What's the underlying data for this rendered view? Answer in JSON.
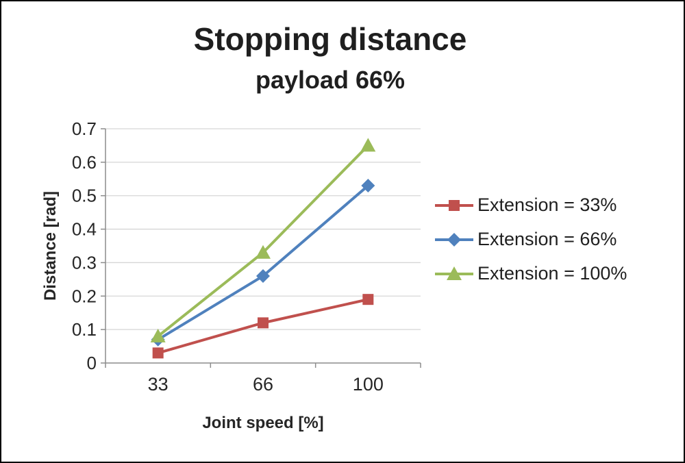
{
  "chart_data": {
    "type": "line",
    "title": "Stopping distance",
    "subtitle": "payload 66%",
    "xlabel": "Joint speed [%]",
    "ylabel": "Distance [rad]",
    "categories": [
      "33",
      "66",
      "100"
    ],
    "ylim": [
      0,
      0.7
    ],
    "ytick_step": 0.1,
    "grid": true,
    "legend_position": "right",
    "series": [
      {
        "name": "Extension = 33%",
        "marker": "square",
        "color": "#C0504D",
        "values": [
          0.03,
          0.12,
          0.19
        ]
      },
      {
        "name": "Extension = 66%",
        "marker": "diamond",
        "color": "#4F81BD",
        "values": [
          0.07,
          0.26,
          0.53
        ]
      },
      {
        "name": "Extension = 100%",
        "marker": "triangle",
        "color": "#9BBB59",
        "values": [
          0.08,
          0.33,
          0.65
        ]
      }
    ],
    "colors": {
      "gridline": "#D6D6D6",
      "axis": "#8C8C8C",
      "text": "#262626",
      "title_text": "#1F1F1F"
    }
  }
}
